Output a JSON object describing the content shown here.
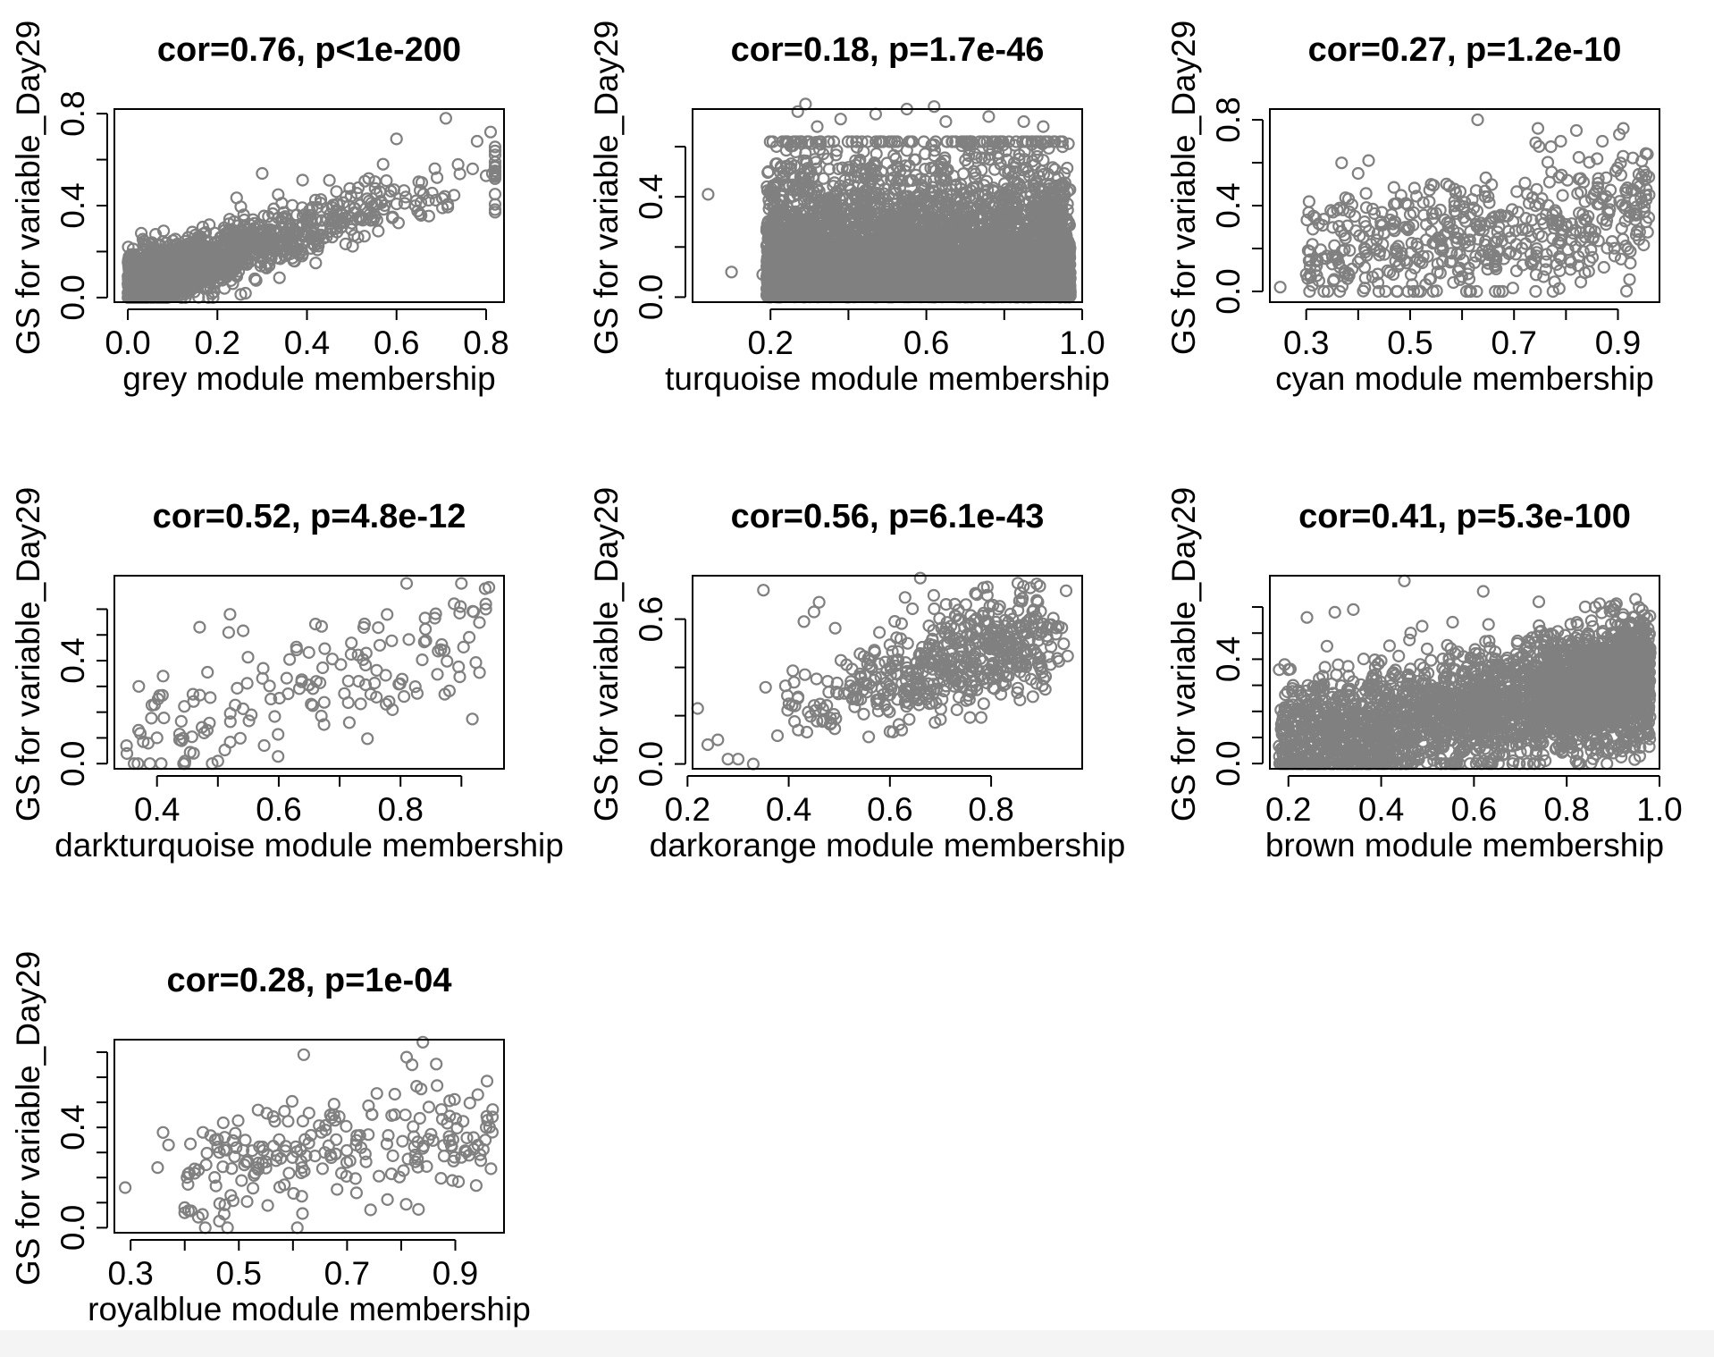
{
  "figure": {
    "background": "#ffffff",
    "point_color": "#808080"
  },
  "chart_data": [
    {
      "type": "scatter",
      "title": "cor=0.76, p<1e-200",
      "xlabel": "grey module membership",
      "ylabel": "GS for variable_Day29",
      "xlim": [
        -0.03,
        0.84
      ],
      "ylim": [
        -0.02,
        0.82
      ],
      "xticks": [
        0.0,
        0.2,
        0.4,
        0.6,
        0.8
      ],
      "xtick_labels": [
        "0.0",
        "0.2",
        "0.4",
        "0.6",
        "0.8"
      ],
      "yticks": [
        0.0,
        0.4,
        0.8
      ],
      "yticks_minor": [
        0.2,
        0.6
      ],
      "ytick_labels": [
        "0.0",
        "0.4",
        "0.8"
      ],
      "gen": {
        "n": 1500,
        "seed": 11,
        "x": {
          "dist": "exp",
          "min": 0.0,
          "max": 0.82,
          "rate": 5.5
        },
        "slope": 0.58,
        "intercept": 0.06,
        "noise": 0.065,
        "clip": [
          0.0,
          0.79
        ]
      },
      "points": [
        [
          0.71,
          0.78
        ],
        [
          0.78,
          0.68
        ],
        [
          0.81,
          0.72
        ],
        [
          0.8,
          0.53
        ],
        [
          0.6,
          0.69
        ],
        [
          0.77,
          0.56
        ],
        [
          0.03,
          0.28
        ],
        [
          0.08,
          0.29
        ],
        [
          0.3,
          0.54
        ],
        [
          0.66,
          0.45
        ],
        [
          0.57,
          0.58
        ],
        [
          0.45,
          0.51
        ]
      ]
    },
    {
      "type": "scatter",
      "title": "cor=0.18, p=1.7e-46",
      "xlabel": "turquoise module membership",
      "ylabel": "GS for variable_Day29",
      "xlim": [
        0.0,
        1.0
      ],
      "ylim": [
        -0.02,
        0.75
      ],
      "xticks": [
        0.2,
        0.6,
        1.0
      ],
      "xticks_minor": [
        0.4,
        0.8
      ],
      "xtick_labels": [
        "0.2",
        "0.6",
        "1.0"
      ],
      "yticks": [
        0.0,
        0.4
      ],
      "yticks_minor": [
        0.2,
        0.6
      ],
      "ytick_labels": [
        "0.0",
        "0.4"
      ],
      "gen": {
        "n": 7000,
        "seed": 23,
        "x": {
          "dist": "uniform",
          "min": 0.19,
          "max": 0.97
        },
        "y": {
          "dist": "exp",
          "min": 0.0,
          "max": 0.62,
          "rate": 7.0
        },
        "slope": 0.0,
        "intercept": 0.0,
        "noise": 0.0,
        "clip": [
          0.0,
          0.66
        ]
      },
      "points": [
        [
          0.04,
          0.41
        ],
        [
          0.1,
          0.1
        ],
        [
          0.18,
          0.09
        ],
        [
          0.27,
          0.74
        ],
        [
          0.29,
          0.77
        ],
        [
          0.55,
          0.75
        ],
        [
          0.47,
          0.73
        ],
        [
          0.62,
          0.76
        ],
        [
          0.76,
          0.72
        ],
        [
          0.65,
          0.7
        ],
        [
          0.38,
          0.71
        ],
        [
          0.85,
          0.7
        ],
        [
          0.93,
          0.62
        ],
        [
          0.9,
          0.68
        ],
        [
          0.32,
          0.68
        ],
        [
          0.2,
          0.01
        ],
        [
          0.4,
          0.0
        ],
        [
          0.7,
          0.0
        ]
      ]
    },
    {
      "type": "scatter",
      "title": "cor=0.27, p=1.2e-10",
      "xlabel": "cyan module membership",
      "ylabel": "GS for variable_Day29",
      "xlim": [
        0.23,
        0.98
      ],
      "ylim": [
        -0.05,
        0.85
      ],
      "xticks": [
        0.3,
        0.5,
        0.7,
        0.9
      ],
      "xticks_minor": [
        0.4,
        0.6,
        0.8
      ],
      "xtick_labels": [
        "0.3",
        "0.5",
        "0.7",
        "0.9"
      ],
      "yticks": [
        0.0,
        0.4,
        0.8
      ],
      "yticks_minor": [
        0.2,
        0.6
      ],
      "ytick_labels": [
        "0.0",
        "0.4",
        "0.8"
      ],
      "gen": {
        "n": 520,
        "seed": 37,
        "x": {
          "dist": "uniform",
          "min": 0.3,
          "max": 0.96
        },
        "slope": 0.35,
        "intercept": 0.05,
        "noise": 0.15,
        "clip": [
          0.0,
          0.76
        ]
      },
      "points": [
        [
          0.25,
          0.02
        ],
        [
          0.3,
          0.08
        ],
        [
          0.32,
          0.12
        ],
        [
          0.36,
          0.16
        ],
        [
          0.63,
          0.8
        ],
        [
          0.82,
          0.75
        ],
        [
          0.87,
          0.7
        ],
        [
          0.79,
          0.7
        ],
        [
          0.95,
          0.56
        ],
        [
          0.96,
          0.45
        ],
        [
          0.91,
          0.63
        ],
        [
          0.42,
          0.61
        ],
        [
          0.4,
          0.55
        ]
      ]
    },
    {
      "type": "scatter",
      "title": "cor=0.52, p=4.8e-12",
      "xlabel": "darkturquoise module membership",
      "ylabel": "GS for variable_Day29",
      "xlim": [
        0.33,
        0.97
      ],
      "ylim": [
        -0.02,
        0.73
      ],
      "xticks": [
        0.4,
        0.6,
        0.8
      ],
      "xticks_minor": [
        0.5,
        0.7,
        0.9
      ],
      "xtick_labels": [
        "0.4",
        "0.6",
        "0.8"
      ],
      "yticks": [
        0.0,
        0.4
      ],
      "yticks_minor": [
        0.1,
        0.2,
        0.3,
        0.5,
        0.6
      ],
      "ytick_labels": [
        "0.0",
        "0.4"
      ],
      "gen": {
        "n": 150,
        "seed": 41,
        "x": {
          "dist": "uniform",
          "min": 0.35,
          "max": 0.95
        },
        "slope": 0.72,
        "intercept": -0.18,
        "noise": 0.12,
        "clip": [
          0.0,
          0.7
        ]
      },
      "points": [
        [
          0.35,
          0.07
        ],
        [
          0.37,
          0.3
        ],
        [
          0.4,
          0.1
        ],
        [
          0.41,
          0.34
        ],
        [
          0.46,
          0.04
        ],
        [
          0.47,
          0.53
        ],
        [
          0.5,
          0.01
        ],
        [
          0.52,
          0.58
        ],
        [
          0.81,
          0.7
        ],
        [
          0.9,
          0.7
        ],
        [
          0.94,
          0.62
        ],
        [
          0.94,
          0.6
        ]
      ]
    },
    {
      "type": "scatter",
      "title": "cor=0.56, p=6.1e-43",
      "xlabel": "darkorange module membership",
      "ylabel": "GS for variable_Day29",
      "xlim": [
        0.21,
        0.98
      ],
      "ylim": [
        -0.02,
        0.78
      ],
      "xticks": [
        0.2,
        0.4,
        0.6,
        0.8
      ],
      "xtick_labels": [
        "0.2",
        "0.4",
        "0.6",
        "0.8"
      ],
      "yticks": [
        0.0,
        0.6
      ],
      "yticks_minor": [
        0.2,
        0.4
      ],
      "ytick_labels": [
        "0.0",
        "0.6"
      ],
      "gen": {
        "n": 540,
        "seed": 53,
        "x": {
          "dist": "beta",
          "min": 0.22,
          "max": 0.96,
          "a": 4,
          "b": 2
        },
        "slope": 0.55,
        "intercept": 0.03,
        "noise": 0.11,
        "clip": [
          0.0,
          0.76
        ]
      },
      "points": [
        [
          0.22,
          0.23
        ],
        [
          0.24,
          0.08
        ],
        [
          0.26,
          0.1
        ],
        [
          0.28,
          0.02
        ],
        [
          0.3,
          0.02
        ],
        [
          0.33,
          0.0
        ],
        [
          0.35,
          0.72
        ],
        [
          0.45,
          0.63
        ],
        [
          0.46,
          0.67
        ],
        [
          0.66,
          0.77
        ],
        [
          0.43,
          0.59
        ],
        [
          0.63,
          0.69
        ]
      ]
    },
    {
      "type": "scatter",
      "title": "cor=0.41, p=5.3e-100",
      "xlabel": "brown module membership",
      "ylabel": "GS for variable_Day29",
      "xlim": [
        0.16,
        1.0
      ],
      "ylim": [
        -0.02,
        0.72
      ],
      "xticks": [
        0.2,
        0.4,
        0.6,
        0.8,
        1.0
      ],
      "xtick_labels": [
        "0.2",
        "0.4",
        "0.6",
        "0.8",
        "1.0"
      ],
      "yticks": [
        0.0,
        0.4
      ],
      "yticks_minor": [
        0.1,
        0.2,
        0.3,
        0.5,
        0.6
      ],
      "ytick_labels": [
        "0.0",
        "0.4"
      ],
      "gen": {
        "n": 3200,
        "seed": 67,
        "x": {
          "dist": "mix",
          "min": 0.18,
          "max": 0.98,
          "w_high": 0.62,
          "high_min": 0.6,
          "high_max": 0.98,
          "low_min": 0.18,
          "low_max": 0.65
        },
        "slope": 0.32,
        "intercept": 0.02,
        "noise": 0.11,
        "clip": [
          0.0,
          0.63
        ]
      },
      "points": [
        [
          0.18,
          0.36
        ],
        [
          0.2,
          0.36
        ],
        [
          0.45,
          0.7
        ],
        [
          0.62,
          0.66
        ],
        [
          0.34,
          0.59
        ],
        [
          0.74,
          0.62
        ],
        [
          0.82,
          0.01
        ],
        [
          0.3,
          0.58
        ],
        [
          0.24,
          0.56
        ],
        [
          0.9,
          0.59
        ]
      ]
    },
    {
      "type": "scatter",
      "title": "cor=0.28, p=1e-04",
      "xlabel": "royalblue module membership",
      "ylabel": "GS for variable_Day29",
      "xlim": [
        0.27,
        0.99
      ],
      "ylim": [
        -0.02,
        0.75
      ],
      "xticks": [
        0.3,
        0.5,
        0.7,
        0.9
      ],
      "xticks_minor": [
        0.4,
        0.6,
        0.8
      ],
      "xtick_labels": [
        "0.3",
        "0.5",
        "0.7",
        "0.9"
      ],
      "yticks": [
        0.0,
        0.4
      ],
      "yticks_minor": [
        0.1,
        0.2,
        0.3,
        0.5,
        0.6,
        0.7
      ],
      "ytick_labels": [
        "0.0",
        "0.4"
      ],
      "gen": {
        "n": 220,
        "seed": 79,
        "x": {
          "dist": "uniform",
          "min": 0.4,
          "max": 0.97
        },
        "slope": 0.25,
        "intercept": 0.13,
        "noise": 0.12,
        "clip": [
          0.0,
          0.72
        ]
      },
      "points": [
        [
          0.29,
          0.16
        ],
        [
          0.35,
          0.24
        ],
        [
          0.36,
          0.38
        ],
        [
          0.37,
          0.33
        ],
        [
          0.4,
          0.08
        ],
        [
          0.4,
          0.06
        ],
        [
          0.62,
          0.69
        ],
        [
          0.81,
          0.68
        ],
        [
          0.84,
          0.74
        ],
        [
          0.82,
          0.65
        ]
      ]
    }
  ]
}
